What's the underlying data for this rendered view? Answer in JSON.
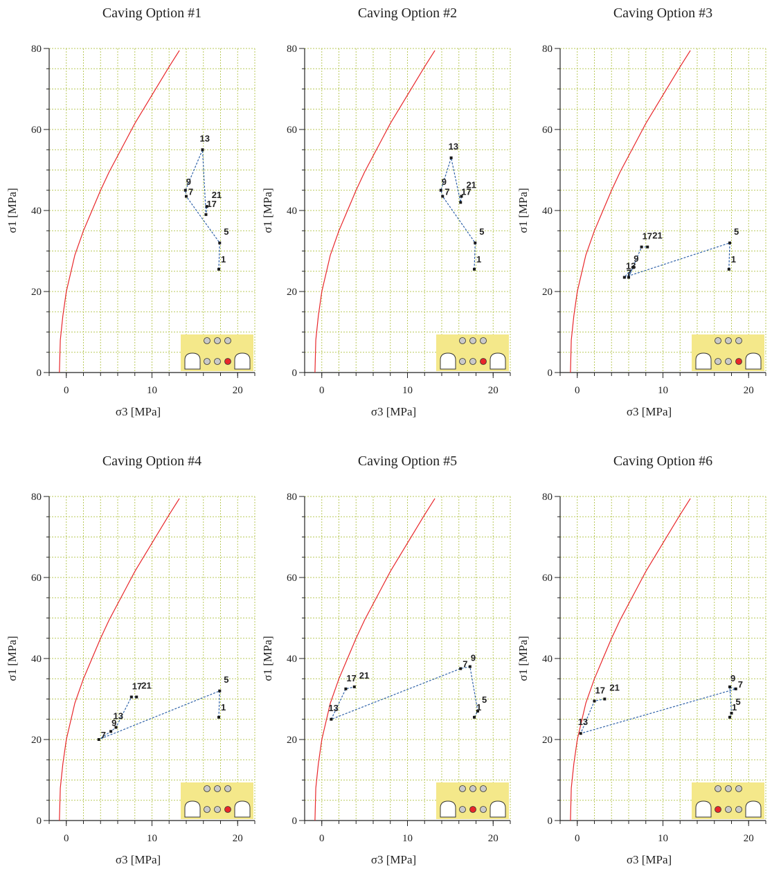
{
  "colors": {
    "grid": "#b9c95a",
    "envelope": "#e8262a",
    "path": "#2f62a8",
    "point": "#1a1a1a",
    "inset_bg": "#f4e88a",
    "inset_circle_fill": "#c9c9c9",
    "inset_highlight": "#e8262a",
    "axis": "#222222"
  },
  "chart_data": [
    {
      "type": "line",
      "title": "Caving Option #1",
      "xlabel": "σ3 [MPa]",
      "ylabel": "σ1 [MPa]",
      "xlim": [
        -2,
        22
      ],
      "ylim": [
        0,
        80
      ],
      "x_ticks": [
        0,
        10,
        20
      ],
      "y_ticks": [
        0,
        20,
        40,
        60,
        80
      ],
      "grid": true,
      "envelope": {
        "x": [
          -0.8,
          -0.7,
          -0.4,
          0,
          1,
          2,
          3,
          4,
          5,
          6,
          7,
          8,
          9,
          10,
          11,
          12,
          13.2
        ],
        "y": [
          0,
          8,
          14,
          20,
          29,
          35,
          40,
          45,
          49.5,
          53.5,
          57.5,
          61.5,
          65,
          68.5,
          72,
          75.5,
          79.5
        ]
      },
      "points": [
        {
          "label": "1",
          "x": 17.8,
          "y": 25.5
        },
        {
          "label": "5",
          "x": 17.9,
          "y": 32.0
        },
        {
          "label": "17",
          "x": 16.3,
          "y": 39.0
        },
        {
          "label": "21",
          "x": 16.4,
          "y": 41.0
        },
        {
          "label": "7",
          "x": 14.0,
          "y": 43.5
        },
        {
          "label": "9",
          "x": 13.9,
          "y": 45.0
        },
        {
          "label": "13",
          "x": 15.9,
          "y": 55.0
        }
      ],
      "path_order": [
        "1",
        "5",
        "7",
        "9",
        "13",
        "17",
        "21"
      ],
      "inset": {
        "highlight_row": 2,
        "highlight_col": 3
      }
    },
    {
      "type": "line",
      "title": "Caving Option #2",
      "xlabel": "σ3 [MPa]",
      "ylabel": "σ1 [MPa]",
      "xlim": [
        -2,
        22
      ],
      "ylim": [
        0,
        80
      ],
      "x_ticks": [
        0,
        10,
        20
      ],
      "y_ticks": [
        0,
        20,
        40,
        60,
        80
      ],
      "grid": true,
      "envelope": {
        "x": [
          -0.8,
          -0.7,
          -0.4,
          0,
          1,
          2,
          3,
          4,
          5,
          6,
          7,
          8,
          9,
          10,
          11,
          12,
          13.2
        ],
        "y": [
          0,
          8,
          14,
          20,
          29,
          35,
          40,
          45,
          49.5,
          53.5,
          57.5,
          61.5,
          65,
          68.5,
          72,
          75.5,
          79.5
        ]
      },
      "points": [
        {
          "label": "1",
          "x": 17.8,
          "y": 25.5
        },
        {
          "label": "5",
          "x": 17.9,
          "y": 32.0
        },
        {
          "label": "17",
          "x": 16.2,
          "y": 42.0
        },
        {
          "label": "21",
          "x": 16.3,
          "y": 43.5
        },
        {
          "label": "7",
          "x": 14.1,
          "y": 43.5
        },
        {
          "label": "9",
          "x": 13.9,
          "y": 45.0
        },
        {
          "label": "13",
          "x": 15.1,
          "y": 53.0
        }
      ],
      "path_order": [
        "1",
        "5",
        "7",
        "9",
        "13",
        "17",
        "21"
      ],
      "inset": {
        "highlight_row": 2,
        "highlight_col": 3
      }
    },
    {
      "type": "line",
      "title": "Caving Option #3",
      "xlabel": "σ3 [MPa]",
      "ylabel": "σ1 [MPa]",
      "xlim": [
        -2,
        22
      ],
      "ylim": [
        0,
        80
      ],
      "x_ticks": [
        0,
        10,
        20
      ],
      "y_ticks": [
        0,
        20,
        40,
        60,
        80
      ],
      "grid": true,
      "envelope": {
        "x": [
          -0.8,
          -0.7,
          -0.4,
          0,
          1,
          2,
          3,
          4,
          5,
          6,
          7,
          8,
          9,
          10,
          11,
          12,
          13.2
        ],
        "y": [
          0,
          8,
          14,
          20,
          29,
          35,
          40,
          45,
          49.5,
          53.5,
          57.5,
          61.5,
          65,
          68.5,
          72,
          75.5,
          79.5
        ]
      },
      "points": [
        {
          "label": "1",
          "x": 17.7,
          "y": 25.5
        },
        {
          "label": "5",
          "x": 17.8,
          "y": 32.0
        },
        {
          "label": "7",
          "x": 5.5,
          "y": 23.5
        },
        {
          "label": "9",
          "x": 6.5,
          "y": 26.0
        },
        {
          "label": "13",
          "x": 6.0,
          "y": 23.5
        },
        {
          "label": "17",
          "x": 7.5,
          "y": 31.0
        },
        {
          "label": "21",
          "x": 8.2,
          "y": 31.0
        }
      ],
      "path_order": [
        "1",
        "5",
        "7",
        "9",
        "13",
        "17",
        "21"
      ],
      "inset": {
        "highlight_row": 2,
        "highlight_col": 3
      }
    },
    {
      "type": "line",
      "title": "Caving Option #4",
      "xlabel": "σ3 [MPa]",
      "ylabel": "σ1 [MPa]",
      "xlim": [
        -2,
        22
      ],
      "ylim": [
        0,
        80
      ],
      "x_ticks": [
        0,
        10,
        20
      ],
      "y_ticks": [
        0,
        20,
        40,
        60,
        80
      ],
      "grid": true,
      "envelope": {
        "x": [
          -0.8,
          -0.7,
          -0.4,
          0,
          1,
          2,
          3,
          4,
          5,
          6,
          7,
          8,
          9,
          10,
          11,
          12,
          13.2
        ],
        "y": [
          0,
          8,
          14,
          20,
          29,
          35,
          40,
          45,
          49.5,
          53.5,
          57.5,
          61.5,
          65,
          68.5,
          72,
          75.5,
          79.5
        ]
      },
      "points": [
        {
          "label": "1",
          "x": 17.8,
          "y": 25.5
        },
        {
          "label": "5",
          "x": 17.9,
          "y": 32.0
        },
        {
          "label": "7",
          "x": 3.8,
          "y": 20.0
        },
        {
          "label": "9",
          "x": 5.2,
          "y": 22.0
        },
        {
          "label": "13",
          "x": 5.8,
          "y": 23.0
        },
        {
          "label": "17",
          "x": 7.6,
          "y": 30.5
        },
        {
          "label": "21",
          "x": 8.2,
          "y": 30.5
        }
      ],
      "path_order": [
        "1",
        "5",
        "7",
        "9",
        "13",
        "17",
        "21"
      ],
      "inset": {
        "highlight_row": 2,
        "highlight_col": 3
      }
    },
    {
      "type": "line",
      "title": "Caving Option #5",
      "xlabel": "σ3 [MPa]",
      "ylabel": "σ1 [MPa]",
      "xlim": [
        -2,
        22
      ],
      "ylim": [
        0,
        80
      ],
      "x_ticks": [
        0,
        10,
        20
      ],
      "y_ticks": [
        0,
        20,
        40,
        60,
        80
      ],
      "grid": true,
      "envelope": {
        "x": [
          -0.8,
          -0.7,
          -0.4,
          0,
          1,
          2,
          3,
          4,
          5,
          6,
          7,
          8,
          9,
          10,
          11,
          12,
          13.2
        ],
        "y": [
          0,
          8,
          14,
          20,
          29,
          35,
          40,
          45,
          49.5,
          53.5,
          57.5,
          61.5,
          65,
          68.5,
          72,
          75.5,
          79.5
        ]
      },
      "points": [
        {
          "label": "1",
          "x": 17.8,
          "y": 25.5
        },
        {
          "label": "5",
          "x": 18.2,
          "y": 27.0
        },
        {
          "label": "7",
          "x": 16.2,
          "y": 37.5
        },
        {
          "label": "9",
          "x": 17.3,
          "y": 38.0
        },
        {
          "label": "13",
          "x": 1.1,
          "y": 25.0
        },
        {
          "label": "17",
          "x": 2.8,
          "y": 32.5
        },
        {
          "label": "21",
          "x": 3.8,
          "y": 33.0
        }
      ],
      "path_order": [
        "1",
        "5",
        "9",
        "7",
        "13",
        "17",
        "21"
      ],
      "inset": {
        "highlight_row": 2,
        "highlight_col": 2
      }
    },
    {
      "type": "line",
      "title": "Caving Option #6",
      "xlabel": "σ3 [MPa]",
      "ylabel": "σ1 [MPa]",
      "xlim": [
        -2,
        22
      ],
      "ylim": [
        0,
        80
      ],
      "x_ticks": [
        0,
        10,
        20
      ],
      "y_ticks": [
        0,
        20,
        40,
        60,
        80
      ],
      "grid": true,
      "envelope": {
        "x": [
          -0.8,
          -0.7,
          -0.4,
          0,
          1,
          2,
          3,
          4,
          5,
          6,
          7,
          8,
          9,
          10,
          11,
          12,
          13.2
        ],
        "y": [
          0,
          8,
          14,
          20,
          29,
          35,
          40,
          45,
          49.5,
          53.5,
          57.5,
          61.5,
          65,
          68.5,
          72,
          75.5,
          79.5
        ]
      },
      "points": [
        {
          "label": "1",
          "x": 17.8,
          "y": 25.5
        },
        {
          "label": "5",
          "x": 18.0,
          "y": 26.5
        },
        {
          "label": "9",
          "x": 17.8,
          "y": 33.0
        },
        {
          "label": "7",
          "x": 18.5,
          "y": 32.5
        },
        {
          "label": "13",
          "x": 0.4,
          "y": 21.5
        },
        {
          "label": "17",
          "x": 2.0,
          "y": 29.5
        },
        {
          "label": "21",
          "x": 3.2,
          "y": 30.0
        }
      ],
      "path_order": [
        "1",
        "5",
        "9",
        "7",
        "13",
        "17",
        "21"
      ],
      "inset": {
        "highlight_row": 2,
        "highlight_col": 1
      }
    }
  ]
}
